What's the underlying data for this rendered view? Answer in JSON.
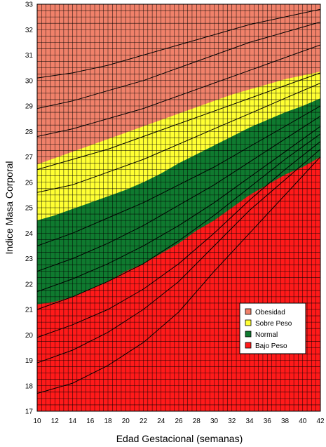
{
  "chart_data": {
    "type": "area",
    "title": "",
    "xlabel": "Edad Gestacional (semanas)",
    "ylabel": "Indice Masa Corporal",
    "xlim": [
      10,
      42
    ],
    "ylim": [
      17,
      33
    ],
    "x_ticks": [
      10,
      12,
      14,
      16,
      18,
      20,
      22,
      24,
      26,
      28,
      30,
      32,
      34,
      36,
      38,
      40,
      42
    ],
    "y_ticks": [
      17,
      18,
      19,
      20,
      21,
      22,
      23,
      24,
      25,
      26,
      27,
      28,
      29,
      30,
      31,
      32,
      33
    ],
    "grid": true,
    "legend_position": "right",
    "boundaries": {
      "x": [
        10,
        12,
        14,
        16,
        18,
        20,
        22,
        24,
        26,
        28,
        30,
        32,
        34,
        36,
        38,
        40,
        42
      ],
      "bajo_normal": [
        21.2,
        21.3,
        21.5,
        21.8,
        22.1,
        22.5,
        22.8,
        23.2,
        23.6,
        24.1,
        24.5,
        25.0,
        25.5,
        25.9,
        26.3,
        26.6,
        27.0
      ],
      "normal_sobre": [
        24.5,
        24.7,
        24.95,
        25.2,
        25.45,
        25.7,
        26.0,
        26.35,
        26.75,
        27.1,
        27.45,
        27.8,
        28.15,
        28.45,
        28.75,
        29.0,
        29.3
      ],
      "sobre_obesidad": [
        26.7,
        26.95,
        27.2,
        27.45,
        27.7,
        27.95,
        28.2,
        28.45,
        28.7,
        28.95,
        29.2,
        29.45,
        29.65,
        29.85,
        30.05,
        30.2,
        30.35
      ]
    },
    "series": [
      {
        "name": "Obesidad",
        "color": "#f0816a"
      },
      {
        "name": "Sobre Peso",
        "color": "#ffff33"
      },
      {
        "name": "Normal",
        "color": "#0f7a2f"
      },
      {
        "name": "Bajo Peso",
        "color": "#ff1a1a"
      }
    ],
    "reference_curves": [
      {
        "x": [
          10,
          14,
          18,
          22,
          26,
          30,
          34,
          38,
          42
        ],
        "y": [
          17.7,
          18.1,
          18.8,
          19.7,
          20.9,
          22.5,
          24.0,
          25.5,
          27.0
        ]
      },
      {
        "x": [
          10,
          14,
          18,
          22,
          26,
          30,
          34,
          38,
          42
        ],
        "y": [
          18.9,
          19.4,
          20.1,
          21.0,
          22.1,
          23.5,
          24.9,
          26.1,
          27.3
        ]
      },
      {
        "x": [
          10,
          14,
          18,
          22,
          26,
          30,
          34,
          38,
          42
        ],
        "y": [
          19.9,
          20.4,
          21.0,
          21.8,
          22.8,
          24.0,
          25.3,
          26.5,
          27.6
        ]
      },
      {
        "x": [
          10,
          14,
          18,
          22,
          26,
          30,
          34,
          38,
          42
        ],
        "y": [
          21.0,
          21.5,
          22.1,
          22.8,
          23.7,
          24.7,
          25.8,
          26.9,
          27.9
        ]
      },
      {
        "x": [
          10,
          14,
          18,
          22,
          26,
          30,
          34,
          38,
          42
        ],
        "y": [
          21.7,
          22.2,
          22.8,
          23.5,
          24.3,
          25.2,
          26.2,
          27.2,
          28.2
        ]
      },
      {
        "x": [
          10,
          14,
          18,
          22,
          26,
          30,
          34,
          38,
          42
        ],
        "y": [
          22.5,
          23.0,
          23.6,
          24.3,
          25.1,
          25.9,
          26.8,
          27.7,
          28.6
        ]
      },
      {
        "x": [
          10,
          14,
          18,
          22,
          26,
          30,
          34,
          38,
          42
        ],
        "y": [
          23.5,
          24.0,
          24.6,
          25.2,
          25.9,
          26.6,
          27.4,
          28.2,
          29.0
        ]
      },
      {
        "x": [
          10,
          14,
          18,
          22,
          26,
          30,
          34,
          38,
          42
        ],
        "y": [
          25.6,
          25.9,
          26.4,
          26.9,
          27.5,
          28.1,
          28.7,
          29.3,
          29.9
        ]
      },
      {
        "x": [
          10,
          14,
          18,
          22,
          26,
          30,
          34,
          38,
          42
        ],
        "y": [
          26.5,
          26.9,
          27.3,
          27.8,
          28.3,
          28.8,
          29.3,
          29.8,
          30.3
        ]
      },
      {
        "x": [
          10,
          14,
          18,
          22,
          26,
          30,
          34,
          38,
          42
        ],
        "y": [
          27.8,
          28.1,
          28.5,
          28.9,
          29.4,
          29.9,
          30.4,
          30.9,
          31.4
        ]
      },
      {
        "x": [
          10,
          14,
          18,
          22,
          26,
          30,
          34,
          38,
          42
        ],
        "y": [
          28.9,
          29.2,
          29.6,
          30.0,
          30.5,
          31.0,
          31.5,
          31.9,
          32.3
        ]
      },
      {
        "x": [
          10,
          14,
          18,
          22,
          26,
          30,
          34,
          38,
          42
        ],
        "y": [
          30.1,
          30.3,
          30.6,
          31.0,
          31.4,
          31.8,
          32.2,
          32.5,
          32.8
        ]
      }
    ]
  }
}
